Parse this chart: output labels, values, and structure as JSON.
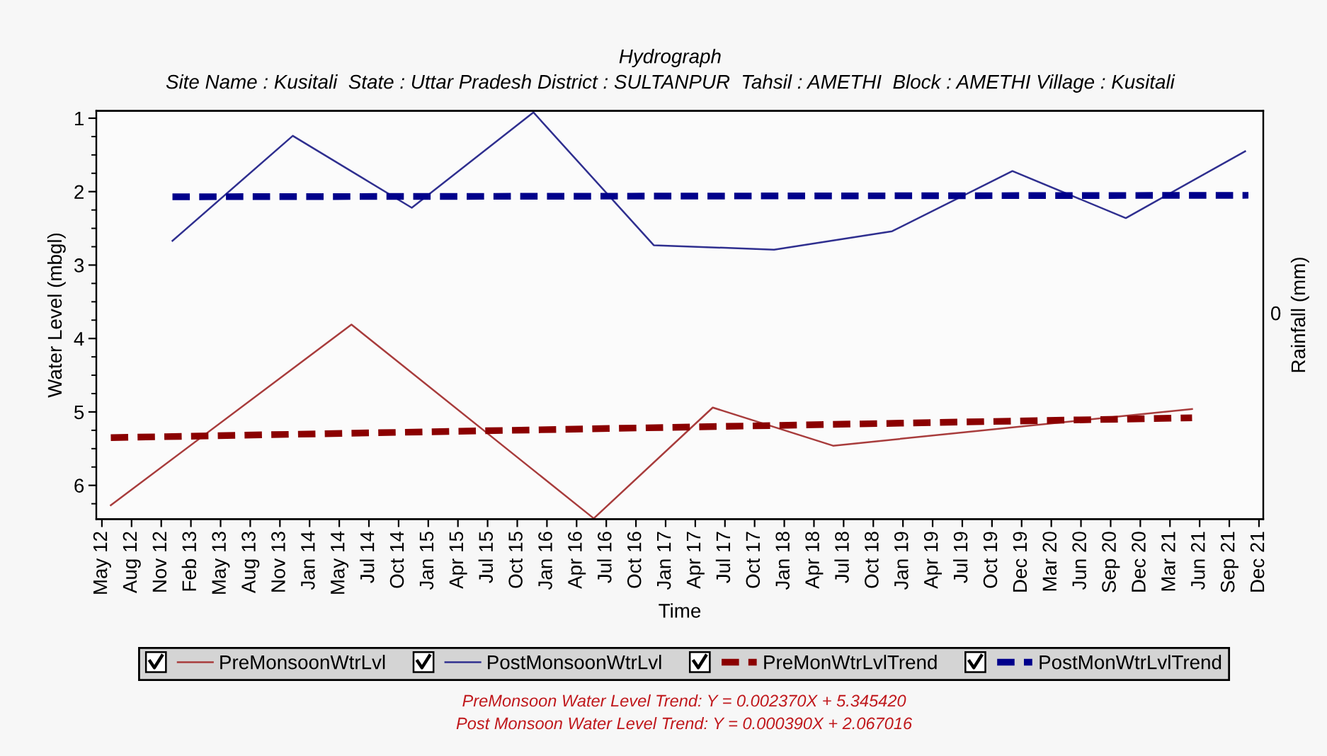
{
  "chart_data": {
    "type": "line",
    "title": "Hydrograph",
    "subtitle": "Site Name : Kusitali  State : Uttar Pradesh District : SULTANPUR  Tahsil : AMETHI  Block : AMETHI Village : Kusitali",
    "xlabel": "Time",
    "ylabel": "Water Level (mbgl)",
    "y2label": "Rainfall (mm)",
    "xlim": [
      "2012-04-24",
      "2022-01-02"
    ],
    "xticks": [
      {
        "value": "2012-05-11",
        "label": "May 12"
      },
      {
        "value": "2012-08-09",
        "label": "Aug 12"
      },
      {
        "value": "2012-11-07",
        "label": "Nov 12"
      },
      {
        "value": "2013-02-05",
        "label": "Feb 13"
      },
      {
        "value": "2013-05-06",
        "label": "May 13"
      },
      {
        "value": "2013-08-04",
        "label": "Aug 13"
      },
      {
        "value": "2013-11-02",
        "label": "Nov 13"
      },
      {
        "value": "2014-01-31",
        "label": "Jan 14"
      },
      {
        "value": "2014-05-01",
        "label": "May 14"
      },
      {
        "value": "2014-07-30",
        "label": "Jul 14"
      },
      {
        "value": "2014-10-28",
        "label": "Oct 14"
      },
      {
        "value": "2015-01-26",
        "label": "Jan 15"
      },
      {
        "value": "2015-04-26",
        "label": "Apr 15"
      },
      {
        "value": "2015-07-25",
        "label": "Jul 15"
      },
      {
        "value": "2015-10-23",
        "label": "Oct 15"
      },
      {
        "value": "2016-01-21",
        "label": "Jan 16"
      },
      {
        "value": "2016-04-20",
        "label": "Apr 16"
      },
      {
        "value": "2016-07-19",
        "label": "Jul 16"
      },
      {
        "value": "2016-10-17",
        "label": "Oct 16"
      },
      {
        "value": "2017-01-15",
        "label": "Jan 17"
      },
      {
        "value": "2017-04-15",
        "label": "Apr 17"
      },
      {
        "value": "2017-07-14",
        "label": "Jul 17"
      },
      {
        "value": "2017-10-12",
        "label": "Oct 17"
      },
      {
        "value": "2018-01-10",
        "label": "Jan 18"
      },
      {
        "value": "2018-04-10",
        "label": "Apr 18"
      },
      {
        "value": "2018-07-09",
        "label": "Jul 18"
      },
      {
        "value": "2018-10-07",
        "label": "Oct 18"
      },
      {
        "value": "2019-01-05",
        "label": "Jan 19"
      },
      {
        "value": "2019-04-05",
        "label": "Apr 19"
      },
      {
        "value": "2019-07-04",
        "label": "Jul 19"
      },
      {
        "value": "2019-10-02",
        "label": "Oct 19"
      },
      {
        "value": "2019-12-31",
        "label": "Dec 19"
      },
      {
        "value": "2020-03-30",
        "label": "Mar 20"
      },
      {
        "value": "2020-06-28",
        "label": "Jun 20"
      },
      {
        "value": "2020-09-26",
        "label": "Sep 20"
      },
      {
        "value": "2020-12-25",
        "label": "Dec 20"
      },
      {
        "value": "2021-03-25",
        "label": "Mar 21"
      },
      {
        "value": "2021-06-23",
        "label": "Jun 21"
      },
      {
        "value": "2021-09-21",
        "label": "Sep 21"
      },
      {
        "value": "2021-12-20",
        "label": "Dec 21"
      }
    ],
    "ylim": [
      6.46,
      0.9
    ],
    "yticks": [
      1,
      {
        "value": 1.25,
        "label": null
      },
      {
        "value": 1.5,
        "label": null
      },
      {
        "value": 1.75,
        "label": null
      },
      2,
      {
        "value": 2.25,
        "label": null
      },
      {
        "value": 2.5,
        "label": null
      },
      {
        "value": 2.75,
        "label": null
      },
      3,
      {
        "value": 3.25,
        "label": null
      },
      {
        "value": 3.5,
        "label": null
      },
      {
        "value": 3.75,
        "label": null
      },
      4,
      {
        "value": 4.25,
        "label": null
      },
      {
        "value": 4.5,
        "label": null
      },
      {
        "value": 4.75,
        "label": null
      },
      5,
      {
        "value": 5.25,
        "label": null
      },
      {
        "value": 5.5,
        "label": null
      },
      {
        "value": 5.75,
        "label": null
      },
      6,
      {
        "value": 6.25,
        "label": null
      }
    ],
    "legend": "bottom",
    "series": [
      {
        "name": "PreMonsoonWtrLvl",
        "color": "#a83c3c",
        "line_style": "solid",
        "x": [
          "2012-06-07",
          "2014-06-07",
          "2016-06-11",
          "2017-06-07",
          "2018-06-07",
          "2021-05-31"
        ],
        "values": [
          6.27,
          3.81,
          6.45,
          4.94,
          5.46,
          4.96
        ]
      },
      {
        "name": "PostMonsoonWtrLvl",
        "color": "#2f2f8f",
        "line_style": "solid",
        "x": [
          "2012-12-11",
          "2013-12-11",
          "2014-12-07",
          "2015-12-11",
          "2016-12-10",
          "2017-12-10",
          "2018-12-03",
          "2019-12-03",
          "2020-11-11",
          "2021-11-08"
        ],
        "values": [
          2.67,
          1.24,
          2.22,
          0.92,
          2.73,
          2.79,
          2.54,
          1.72,
          2.36,
          1.45
        ]
      },
      {
        "name": "PreMonWtrLvlTrend",
        "color": "#8b0000",
        "line_style": "dashed",
        "x": [
          "2012-06-07",
          "2021-05-31"
        ],
        "values": [
          5.35,
          5.08
        ]
      },
      {
        "name": "PostMonWtrLvlTrend",
        "color": "#00008b",
        "line_style": "dashed",
        "x": [
          "2012-12-11",
          "2021-11-18"
        ],
        "values": [
          2.07,
          2.05
        ]
      }
    ],
    "annotations": [
      "0",
      "PreMonsoon Water Level Trend: Y = 0.002370X + 5.345420",
      "Post Monsoon Water Level Trend: Y = 0.000390X + 2.067016"
    ]
  }
}
